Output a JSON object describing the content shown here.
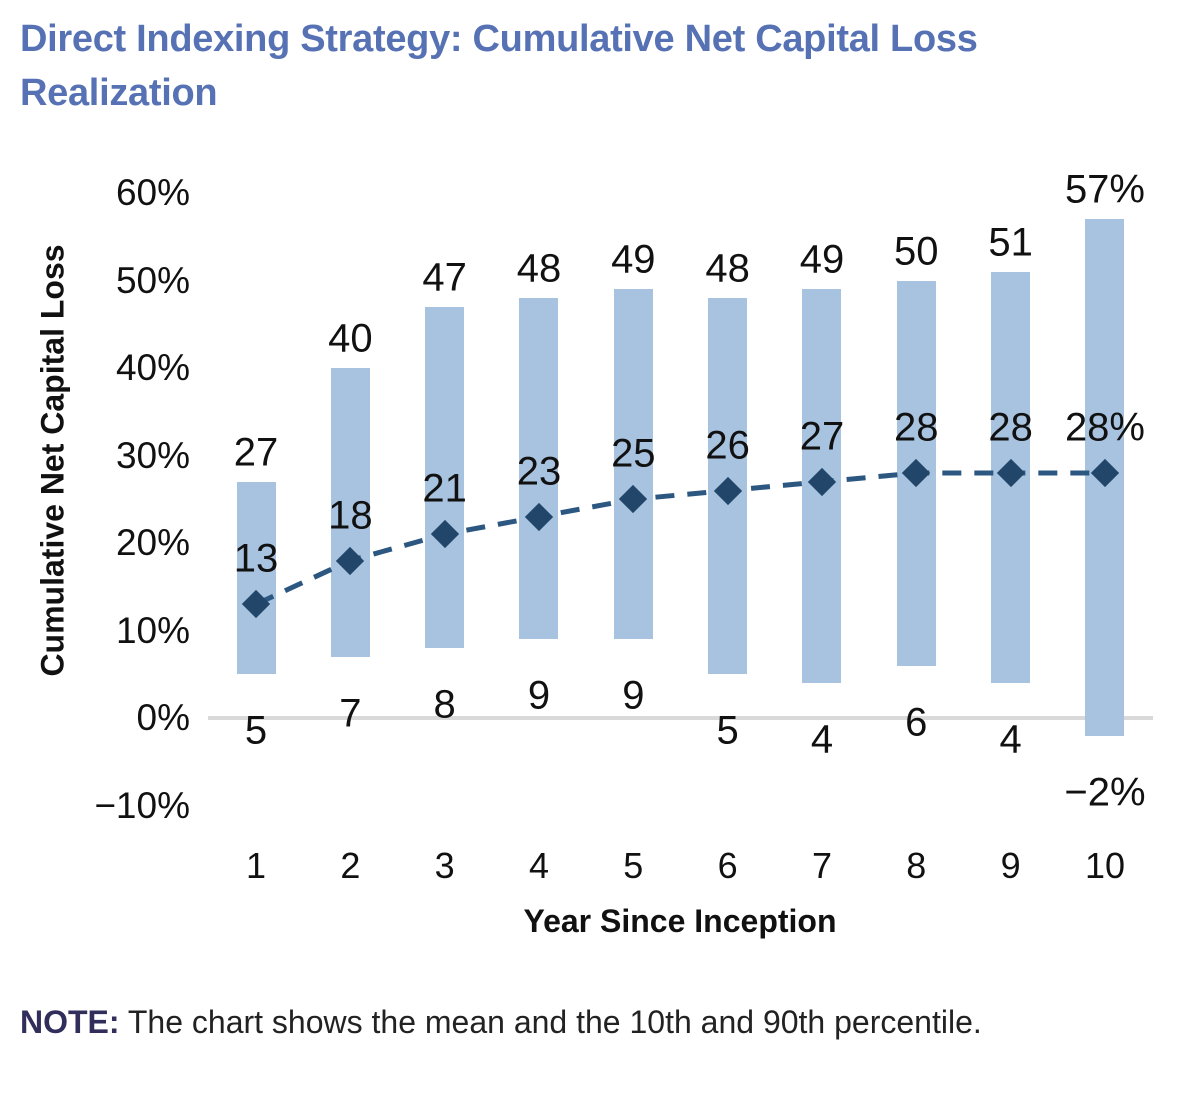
{
  "header": {
    "title_line1": "Direct Indexing Strategy: Cumulative Net Capital Loss",
    "title_line2": "Realization"
  },
  "note": {
    "prefix": "NOTE:",
    "text": "The chart shows the mean and the 10th and 90th percentile."
  },
  "chart_data": {
    "type": "bar",
    "subtype": "floating-range-bars-with-mean-line",
    "title": "Direct Indexing Strategy: Cumulative Net Capital Loss Realization",
    "xlabel": "Year Since Inception",
    "ylabel": "Cumulative Net Capital Loss",
    "categories": [
      "1",
      "2",
      "3",
      "4",
      "5",
      "6",
      "7",
      "8",
      "9",
      "10"
    ],
    "series": [
      {
        "name": "10th percentile",
        "values": [
          5,
          7,
          8,
          9,
          9,
          5,
          4,
          6,
          4,
          -2
        ]
      },
      {
        "name": "90th percentile",
        "values": [
          27,
          40,
          47,
          48,
          49,
          48,
          49,
          50,
          51,
          57
        ]
      },
      {
        "name": "Mean",
        "values": [
          13,
          18,
          21,
          23,
          25,
          26,
          27,
          28,
          28,
          28
        ]
      }
    ],
    "data_labels": {
      "top": [
        "27",
        "40",
        "47",
        "48",
        "49",
        "48",
        "49",
        "50",
        "51",
        "57%"
      ],
      "mean": [
        "13",
        "18",
        "21",
        "23",
        "25",
        "26",
        "27",
        "28",
        "28",
        "28%"
      ],
      "bottom": [
        "5",
        "7",
        "8",
        "9",
        "9",
        "5",
        "4",
        "6",
        "4",
        "−2%"
      ]
    },
    "yticks": {
      "labels": [
        "60%",
        "50%",
        "40%",
        "30%",
        "20%",
        "10%",
        "0%",
        "−10%"
      ],
      "values": [
        60,
        50,
        40,
        30,
        20,
        10,
        0,
        -10
      ]
    },
    "ylim": [
      -10,
      60
    ],
    "grid": "zero-line-only",
    "legend": "none",
    "colors": {
      "bar": "#A8C3E0",
      "mean_marker": "#214669",
      "mean_line": "#2C5781",
      "zero_line": "#D9D9D9",
      "title": "#5672B4",
      "note_prefix": "#322E5C",
      "text": "#111111"
    }
  }
}
